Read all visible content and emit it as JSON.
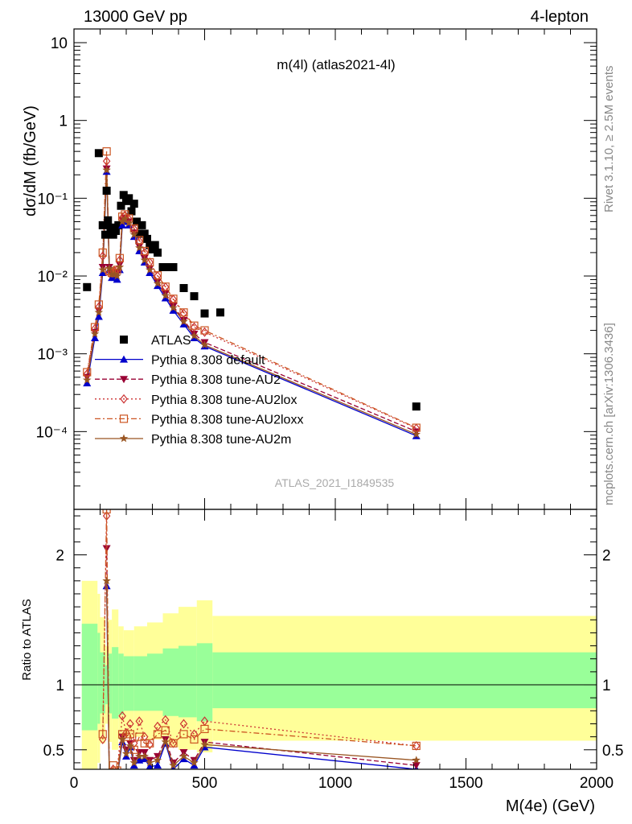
{
  "header": {
    "left": "13000 GeV pp",
    "right": "4-lepton"
  },
  "side_text": {
    "rivet": "Rivet 3.1.10, ≥ 2.5M events",
    "mcplots": "mcplots.cern.ch [arXiv:1306.3436]"
  },
  "chart_data": {
    "type": "scatter",
    "title": "m(4l) (atlas2021-4l)",
    "analysis_label": "ATLAS_2021_I1849535",
    "xlabel": "M(4e) (GeV)",
    "ylabel": "dσ/dM (fb/GeV)",
    "ratio_ylabel": "Ratio to ATLAS",
    "xlim": [
      0,
      2000
    ],
    "ylim": [
      1e-05,
      15
    ],
    "yscale": "log",
    "ratio_ylim": [
      0.35,
      2.35
    ],
    "x_ticks": [
      "0",
      "500",
      "1000",
      "1500",
      "2000"
    ],
    "y_ticks": [
      "10",
      "1",
      "10⁻¹",
      "10⁻²",
      "10⁻³",
      "10⁻⁴"
    ],
    "ratio_ticks": [
      "2",
      "1",
      "0.5"
    ],
    "legend_position": "lower-left",
    "series": [
      {
        "name": "ATLAS",
        "color": "#000000",
        "marker": "square",
        "x": [
          50,
          95,
          110,
          120,
          125,
          130,
          140,
          150,
          160,
          170,
          180,
          190,
          200,
          210,
          220,
          230,
          240,
          250,
          260,
          270,
          280,
          290,
          300,
          310,
          320,
          340,
          360,
          380,
          420,
          460,
          500,
          560,
          1310
        ],
        "y": [
          0.0072,
          0.38,
          0.045,
          0.034,
          0.125,
          0.052,
          0.042,
          0.034,
          0.038,
          0.045,
          0.08,
          0.11,
          0.092,
          0.1,
          0.068,
          0.085,
          0.05,
          0.035,
          0.045,
          0.035,
          0.03,
          0.025,
          0.022,
          0.025,
          0.02,
          0.013,
          0.013,
          0.013,
          0.007,
          0.0055,
          0.0033,
          0.0034,
          0.00021
        ]
      },
      {
        "name": "Pythia 8.308 default",
        "color": "#0000cc",
        "marker": "triangle-up",
        "dash": "solid",
        "x": [
          50,
          80,
          95,
          110,
          125,
          135,
          145,
          155,
          165,
          175,
          185,
          195,
          210,
          230,
          250,
          270,
          290,
          320,
          350,
          380,
          420,
          460,
          500,
          1310
        ],
        "y": [
          0.00042,
          0.0016,
          0.003,
          0.011,
          0.22,
          0.012,
          0.0095,
          0.0095,
          0.009,
          0.012,
          0.045,
          0.05,
          0.045,
          0.032,
          0.021,
          0.015,
          0.011,
          0.0075,
          0.0052,
          0.0036,
          0.0024,
          0.0016,
          0.00125,
          8.8e-05
        ]
      },
      {
        "name": "Pythia 8.308 tune-AU2",
        "color": "#990033",
        "marker": "triangle-down",
        "dash": "dashed",
        "x": [
          50,
          80,
          95,
          110,
          125,
          135,
          145,
          155,
          165,
          175,
          185,
          195,
          210,
          230,
          250,
          270,
          290,
          320,
          350,
          380,
          420,
          460,
          500,
          1310
        ],
        "y": [
          0.0005,
          0.0019,
          0.0036,
          0.013,
          0.24,
          0.013,
          0.011,
          0.011,
          0.011,
          0.014,
          0.052,
          0.056,
          0.05,
          0.036,
          0.024,
          0.017,
          0.0125,
          0.0085,
          0.006,
          0.0041,
          0.0027,
          0.0018,
          0.0014,
          0.0001
        ]
      },
      {
        "name": "Pythia 8.308 tune-AU2lox",
        "color": "#cc3333",
        "marker": "diamond",
        "dash": "dotted",
        "x": [
          50,
          80,
          95,
          110,
          125,
          135,
          145,
          155,
          165,
          175,
          185,
          195,
          210,
          230,
          250,
          270,
          290,
          320,
          350,
          380,
          420,
          460,
          500,
          1310
        ],
        "y": [
          0.00055,
          0.0021,
          0.004,
          0.018,
          0.3,
          0.011,
          0.011,
          0.0115,
          0.012,
          0.016,
          0.056,
          0.06,
          0.054,
          0.04,
          0.028,
          0.02,
          0.015,
          0.01,
          0.0072,
          0.005,
          0.0033,
          0.0022,
          0.0019,
          0.00011
        ]
      },
      {
        "name": "Pythia 8.308 tune-AU2loxx",
        "color": "#cc5522",
        "marker": "square-open",
        "dash": "dashdot",
        "x": [
          50,
          80,
          95,
          110,
          125,
          135,
          145,
          155,
          165,
          175,
          185,
          195,
          210,
          230,
          250,
          270,
          290,
          320,
          350,
          380,
          420,
          460,
          500,
          1310
        ],
        "y": [
          0.00058,
          0.0022,
          0.0043,
          0.02,
          0.4,
          0.0115,
          0.011,
          0.011,
          0.012,
          0.017,
          0.058,
          0.062,
          0.055,
          0.041,
          0.029,
          0.021,
          0.015,
          0.0102,
          0.0073,
          0.0051,
          0.0034,
          0.0023,
          0.002,
          0.000112
        ]
      },
      {
        "name": "Pythia 8.308 tune-AU2m",
        "color": "#995522",
        "marker": "star",
        "dash": "solid",
        "x": [
          50,
          80,
          95,
          110,
          125,
          135,
          145,
          155,
          165,
          175,
          185,
          195,
          210,
          230,
          250,
          270,
          290,
          320,
          350,
          380,
          420,
          460,
          500,
          1310
        ],
        "y": [
          0.00046,
          0.0018,
          0.0034,
          0.012,
          0.23,
          0.0125,
          0.0105,
          0.0105,
          0.01,
          0.013,
          0.05,
          0.054,
          0.048,
          0.034,
          0.023,
          0.016,
          0.012,
          0.008,
          0.0056,
          0.0039,
          0.0026,
          0.0017,
          0.0013,
          9.2e-05
        ]
      }
    ],
    "ratio_band": {
      "inner_color": "#99ff99",
      "outer_color": "#ffff99",
      "bins": [
        {
          "x0": 30,
          "x1": 90,
          "inner": [
            0.65,
            1.47
          ],
          "outer": [
            0.35,
            1.8
          ]
        },
        {
          "x0": 90,
          "x1": 100,
          "inner": [
            0.7,
            1.4
          ],
          "outer": [
            0.4,
            1.7
          ]
        },
        {
          "x0": 100,
          "x1": 120,
          "inner": [
            0.78,
            1.25
          ],
          "outer": [
            0.55,
            1.52
          ]
        },
        {
          "x0": 120,
          "x1": 130,
          "inner": [
            0.85,
            1.15
          ],
          "outer": [
            0.7,
            1.3
          ]
        },
        {
          "x0": 130,
          "x1": 145,
          "inner": [
            0.78,
            1.24
          ],
          "outer": [
            0.56,
            1.5
          ]
        },
        {
          "x0": 145,
          "x1": 170,
          "inner": [
            0.74,
            1.29
          ],
          "outer": [
            0.5,
            1.58
          ]
        },
        {
          "x0": 170,
          "x1": 190,
          "inner": [
            0.77,
            1.24
          ],
          "outer": [
            0.58,
            1.45
          ]
        },
        {
          "x0": 190,
          "x1": 230,
          "inner": [
            0.8,
            1.22
          ],
          "outer": [
            0.6,
            1.42
          ]
        },
        {
          "x0": 230,
          "x1": 280,
          "inner": [
            0.8,
            1.22
          ],
          "outer": [
            0.6,
            1.45
          ]
        },
        {
          "x0": 280,
          "x1": 340,
          "inner": [
            0.8,
            1.24
          ],
          "outer": [
            0.58,
            1.48
          ]
        },
        {
          "x0": 340,
          "x1": 400,
          "inner": [
            0.76,
            1.28
          ],
          "outer": [
            0.52,
            1.55
          ]
        },
        {
          "x0": 400,
          "x1": 470,
          "inner": [
            0.75,
            1.3
          ],
          "outer": [
            0.5,
            1.6
          ]
        },
        {
          "x0": 470,
          "x1": 530,
          "inner": [
            0.72,
            1.32
          ],
          "outer": [
            0.48,
            1.65
          ]
        },
        {
          "x0": 530,
          "x1": 600,
          "inner": [
            0.82,
            1.25
          ],
          "outer": [
            0.57,
            1.53
          ]
        },
        {
          "x0": 600,
          "x1": 2000,
          "inner": [
            0.82,
            1.25
          ],
          "outer": [
            0.57,
            1.53
          ]
        }
      ]
    },
    "ratio_series": [
      {
        "name": "Pythia 8.308 default",
        "x": [
          125,
          135,
          150,
          165,
          185,
          200,
          215,
          230,
          250,
          270,
          290,
          320,
          350,
          380,
          420,
          460,
          500,
          1310
        ],
        "y": [
          1.76,
          0.3,
          0.28,
          0.28,
          0.56,
          0.45,
          0.52,
          0.38,
          0.42,
          0.43,
          0.37,
          0.38,
          0.55,
          0.35,
          0.43,
          0.38,
          0.52,
          0.35
        ]
      },
      {
        "name": "Pythia 8.308 tune-AU2",
        "x": [
          125,
          135,
          150,
          165,
          185,
          200,
          215,
          230,
          250,
          270,
          290,
          320,
          350,
          380,
          420,
          460,
          500,
          1310
        ],
        "y": [
          2.05,
          0.3,
          0.3,
          0.3,
          0.6,
          0.5,
          0.55,
          0.42,
          0.48,
          0.48,
          0.42,
          0.45,
          0.58,
          0.4,
          0.48,
          0.42,
          0.56,
          0.38
        ]
      },
      {
        "name": "Pythia 8.308 tune-AU2lox",
        "x": [
          110,
          125,
          135,
          150,
          165,
          185,
          200,
          215,
          230,
          250,
          270,
          290,
          320,
          350,
          380,
          420,
          460,
          500,
          1310
        ],
        "y": [
          0.58,
          2.3,
          0.28,
          0.35,
          0.32,
          0.76,
          0.63,
          0.7,
          0.55,
          0.72,
          0.6,
          0.54,
          0.68,
          0.73,
          0.55,
          0.7,
          0.62,
          0.72,
          0.53
        ]
      },
      {
        "name": "Pythia 8.308 tune-AU2loxx",
        "x": [
          110,
          125,
          135,
          150,
          165,
          185,
          200,
          215,
          230,
          250,
          270,
          290,
          320,
          350,
          380,
          420,
          460,
          500,
          1310
        ],
        "y": [
          0.62,
          2.35,
          0.3,
          0.38,
          0.34,
          0.62,
          0.6,
          0.62,
          0.5,
          0.6,
          0.55,
          0.55,
          0.62,
          0.65,
          0.55,
          0.62,
          0.58,
          0.66,
          0.53
        ]
      },
      {
        "name": "Pythia 8.308 tune-AU2m",
        "x": [
          125,
          135,
          150,
          165,
          185,
          200,
          215,
          230,
          250,
          270,
          290,
          320,
          350,
          380,
          420,
          460,
          500,
          1310
        ],
        "y": [
          1.8,
          0.3,
          0.29,
          0.29,
          0.58,
          0.47,
          0.53,
          0.4,
          0.45,
          0.45,
          0.4,
          0.42,
          0.56,
          0.38,
          0.45,
          0.4,
          0.54,
          0.42
        ]
      }
    ]
  }
}
